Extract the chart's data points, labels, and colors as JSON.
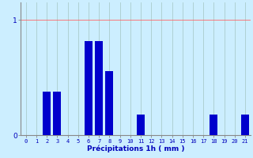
{
  "categories": [
    0,
    1,
    2,
    3,
    4,
    5,
    6,
    7,
    8,
    9,
    10,
    11,
    12,
    13,
    14,
    15,
    16,
    17,
    18,
    19,
    20,
    21
  ],
  "values": [
    0,
    0,
    0.38,
    0.38,
    0,
    0,
    0.82,
    0.82,
    0.56,
    0,
    0,
    0.18,
    0,
    0,
    0,
    0,
    0,
    0,
    0.18,
    0,
    0,
    0.18
  ],
  "bar_color": "#0000cc",
  "background_color": "#cceeff",
  "grid_color": "#aacccc",
  "axis_color": "#888888",
  "text_color": "#0000bb",
  "xlabel": "Précipitations 1h ( mm )",
  "ylim": [
    0,
    1.15
  ],
  "yticks": [
    0,
    1
  ],
  "ytick_labels": [
    "0",
    "1"
  ],
  "xlim": [
    -0.5,
    21.5
  ],
  "bar_width": 0.75,
  "xlabel_fontsize": 6.5,
  "xtick_fontsize": 5.0,
  "ytick_fontsize": 6.5
}
